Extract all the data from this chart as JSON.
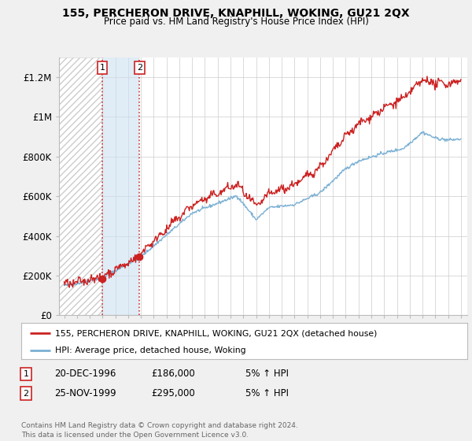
{
  "title": "155, PERCHERON DRIVE, KNAPHILL, WOKING, GU21 2QX",
  "subtitle": "Price paid vs. HM Land Registry's House Price Index (HPI)",
  "ylim": [
    0,
    1300000
  ],
  "yticks": [
    0,
    200000,
    400000,
    600000,
    800000,
    1000000,
    1200000
  ],
  "ytick_labels": [
    "£0",
    "£200K",
    "£400K",
    "£600K",
    "£800K",
    "£1M",
    "£1.2M"
  ],
  "xlim_start": 1993.6,
  "xlim_end": 2025.5,
  "xticks": [
    1994,
    1995,
    1996,
    1997,
    1998,
    1999,
    2000,
    2001,
    2002,
    2003,
    2004,
    2005,
    2006,
    2007,
    2008,
    2009,
    2010,
    2011,
    2012,
    2013,
    2014,
    2015,
    2016,
    2017,
    2018,
    2019,
    2020,
    2021,
    2022,
    2023,
    2024,
    2025
  ],
  "bg_color": "#f0f0f0",
  "plot_bg_color": "#ffffff",
  "grid_color": "#cccccc",
  "hpi_color": "#7ab0d4",
  "price_color": "#cc2222",
  "purchase1_date": 1996.97,
  "purchase1_price": 186000,
  "purchase1_label": "1",
  "purchase2_date": 1999.9,
  "purchase2_price": 295000,
  "purchase2_label": "2",
  "legend_line1": "155, PERCHERON DRIVE, KNAPHILL, WOKING, GU21 2QX (detached house)",
  "legend_line2": "HPI: Average price, detached house, Woking",
  "table_row1": [
    "1",
    "20-DEC-1996",
    "£186,000",
    "5% ↑ HPI"
  ],
  "table_row2": [
    "2",
    "25-NOV-1999",
    "£295,000",
    "5% ↑ HPI"
  ],
  "footnote": "Contains HM Land Registry data © Crown copyright and database right 2024.\nThis data is licensed under the Open Government Licence v3.0."
}
